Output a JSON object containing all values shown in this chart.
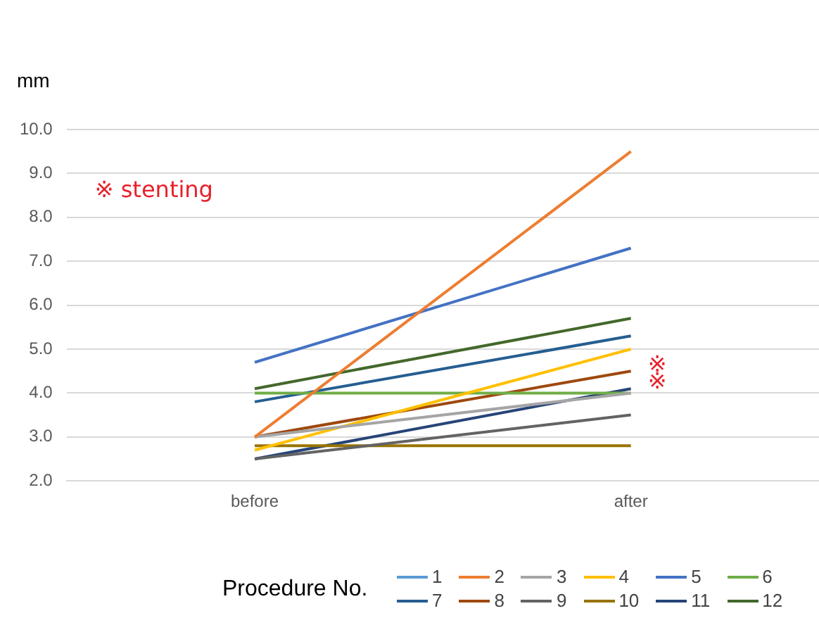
{
  "chart_data": {
    "type": "line",
    "ylabel": "mm",
    "xlabel": "Procedure No.",
    "categories": [
      "before",
      "after"
    ],
    "ylim": [
      2,
      10
    ],
    "yticks": [
      {
        "value": 2,
        "label": "2.0"
      },
      {
        "value": 3,
        "label": "3.0"
      },
      {
        "value": 4,
        "label": "4.0"
      },
      {
        "value": 5,
        "label": "5.0"
      },
      {
        "value": 6,
        "label": "6.0"
      },
      {
        "value": 7,
        "label": "7.0"
      },
      {
        "value": 8,
        "label": "8.0"
      },
      {
        "value": 9,
        "label": "9.0"
      },
      {
        "value": 10,
        "label": "10.0"
      }
    ],
    "grid": "y",
    "legend": "bottom right",
    "marker": "none",
    "line_style": "solid",
    "series": [
      {
        "name": "1",
        "color": "#5b9bd5",
        "values": [
          null,
          null
        ]
      },
      {
        "name": "2",
        "color": "#ed7d31",
        "values": [
          3.0,
          9.5
        ]
      },
      {
        "name": "3",
        "color": "#a5a5a5",
        "values": [
          3.0,
          4.0
        ]
      },
      {
        "name": "4",
        "color": "#ffc000",
        "values": [
          2.7,
          5.0
        ]
      },
      {
        "name": "5",
        "color": "#4472c4",
        "values": [
          4.7,
          7.3
        ]
      },
      {
        "name": "6",
        "color": "#70ad47",
        "values": [
          4.0,
          4.0
        ]
      },
      {
        "name": "7",
        "color": "#255e91",
        "values": [
          3.8,
          5.3
        ]
      },
      {
        "name": "8",
        "color": "#9e480e",
        "values": [
          3.0,
          4.5
        ]
      },
      {
        "name": "9",
        "color": "#636363",
        "values": [
          2.5,
          3.5
        ]
      },
      {
        "name": "10",
        "color": "#997300",
        "values": [
          2.8,
          2.8
        ]
      },
      {
        "name": "11",
        "color": "#264478",
        "values": [
          2.5,
          4.1
        ]
      },
      {
        "name": "12",
        "color": "#43682b",
        "values": [
          4.1,
          5.7
        ]
      }
    ],
    "annotations": [
      "※ stenting",
      {
        "text": "※",
        "x": "after",
        "y": 4.5
      },
      {
        "text": "※",
        "x": "after",
        "y": 4.1
      }
    ]
  }
}
